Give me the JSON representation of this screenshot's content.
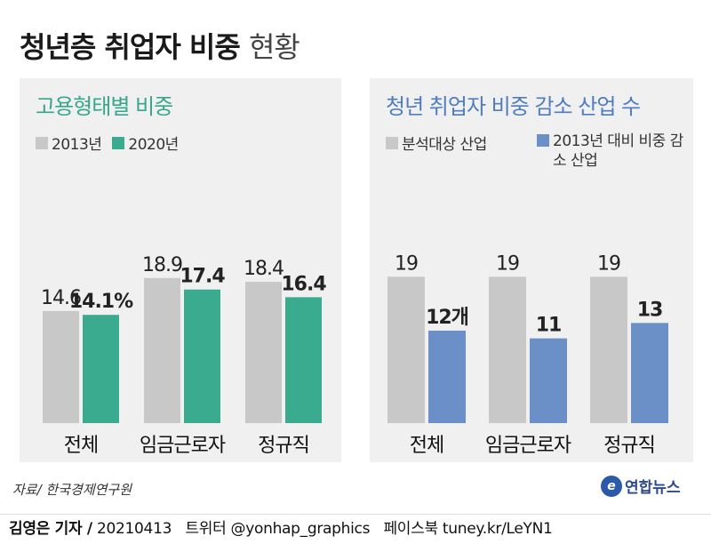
{
  "title_main": "청년층 취업자 비중",
  "title_light": "현황",
  "source": "자료/ 한국경제연구원",
  "logo": "연합뉴스",
  "logo_mark": "e",
  "footer": {
    "reporter": "김영은 기자 /",
    "date": "20210413",
    "twitter": "트위터 @yonhap_graphics",
    "facebook": "페이스북 tuney.kr/LeYN1"
  },
  "colors": {
    "panel_bg": "#f0f0f0",
    "gray": "#c8c8c8",
    "green": "#3aab8f",
    "blue": "#6b90c8"
  },
  "chart_data": [
    {
      "type": "bar",
      "title": "고용형태별 비중",
      "categories": [
        "전체",
        "임금근로자",
        "정규직"
      ],
      "series": [
        {
          "name": "2013년",
          "values": [
            14.6,
            18.9,
            18.4
          ],
          "labels": [
            "14.6",
            "18.9",
            "18.4"
          ],
          "color": "#c8c8c8"
        },
        {
          "name": "2020년",
          "values": [
            14.1,
            17.4,
            16.4
          ],
          "labels": [
            "14.1%",
            "17.4",
            "16.4"
          ],
          "color": "#3aab8f"
        }
      ],
      "ylim": [
        0,
        22
      ]
    },
    {
      "type": "bar",
      "title": "청년 취업자 비중 감소 산업 수",
      "categories": [
        "전체",
        "임금근로자",
        "정규직"
      ],
      "series": [
        {
          "name": "분석대상 산업",
          "values": [
            19,
            19,
            19
          ],
          "labels": [
            "19",
            "19",
            "19"
          ],
          "color": "#c8c8c8"
        },
        {
          "name": "2013년 대비 비중 감소 산업",
          "values": [
            12,
            11,
            13
          ],
          "labels": [
            "12개",
            "11",
            "13"
          ],
          "color": "#6b90c8"
        }
      ],
      "ylim": [
        0,
        21
      ]
    }
  ]
}
